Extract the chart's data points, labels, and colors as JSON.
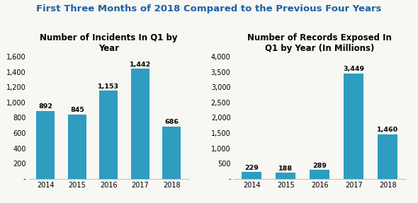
{
  "title": "First Three Months of 2018 Compared to the Previous Four Years",
  "title_color": "#2060a0",
  "title_fontsize": 9.5,
  "left_title": "Number of Incidents In Q1 by\nYear",
  "left_categories": [
    "2014",
    "2015",
    "2016",
    "2017",
    "2018"
  ],
  "left_values": [
    892,
    845,
    1153,
    1442,
    686
  ],
  "left_ylim": [
    0,
    1600
  ],
  "left_yticks": [
    0,
    200,
    400,
    600,
    800,
    1000,
    1200,
    1400,
    1600
  ],
  "right_title": "Number of Records Exposed In\nQ1 by Year (In Millions)",
  "right_categories": [
    "2014",
    "2015",
    "2016",
    "2017",
    "2018"
  ],
  "right_values": [
    229,
    188,
    289,
    3449,
    1460
  ],
  "right_ylim": [
    0,
    4000
  ],
  "right_yticks": [
    0,
    500,
    1000,
    1500,
    2000,
    2500,
    3000,
    3500,
    4000
  ],
  "bar_color": "#2e9dbf",
  "bar_width": 0.58,
  "label_fontsize": 6.8,
  "axis_title_fontsize": 8.5,
  "tick_fontsize": 7,
  "background_color": "#f7f7f3"
}
